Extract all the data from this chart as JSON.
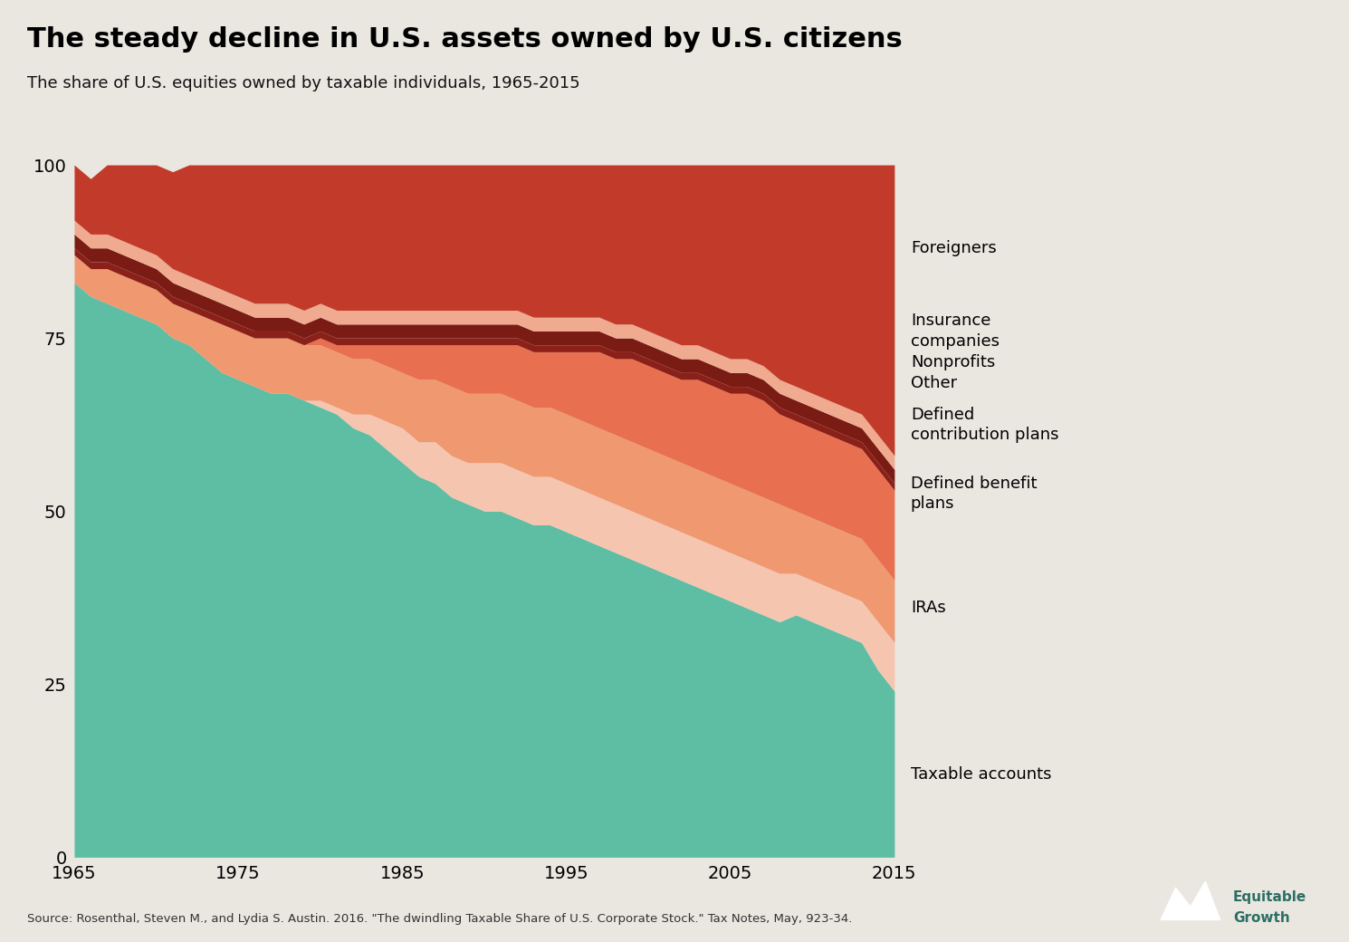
{
  "title": "The steady decline in U.S. assets owned by U.S. citizens",
  "subtitle": "The share of U.S. equities owned by taxable individuals, 1965-2015",
  "source": "Source: Rosenthal, Steven M., and Lydia S. Austin. 2016. \"The dwindling Taxable Share of U.S. Corporate Stock.\" Tax Notes, May, 923-34.",
  "years": [
    1965,
    1966,
    1967,
    1968,
    1969,
    1970,
    1971,
    1972,
    1973,
    1974,
    1975,
    1976,
    1977,
    1978,
    1979,
    1980,
    1981,
    1982,
    1983,
    1984,
    1985,
    1986,
    1987,
    1988,
    1989,
    1990,
    1991,
    1992,
    1993,
    1994,
    1995,
    1996,
    1997,
    1998,
    1999,
    2000,
    2001,
    2002,
    2003,
    2004,
    2005,
    2006,
    2007,
    2008,
    2009,
    2010,
    2011,
    2012,
    2013,
    2014,
    2015
  ],
  "series": {
    "Taxable accounts": [
      83,
      81,
      80,
      79,
      78,
      77,
      75,
      74,
      72,
      70,
      69,
      68,
      67,
      67,
      66,
      65,
      64,
      62,
      61,
      59,
      57,
      55,
      54,
      52,
      51,
      50,
      50,
      49,
      48,
      48,
      47,
      46,
      45,
      44,
      43,
      42,
      41,
      40,
      39,
      38,
      37,
      36,
      35,
      34,
      35,
      34,
      33,
      32,
      31,
      27,
      24
    ],
    "IRAs": [
      0,
      0,
      0,
      0,
      0,
      0,
      0,
      0,
      0,
      0,
      0,
      0,
      0,
      0,
      0,
      1,
      1,
      2,
      3,
      4,
      5,
      5,
      6,
      6,
      6,
      7,
      7,
      7,
      7,
      7,
      7,
      7,
      7,
      7,
      7,
      7,
      7,
      7,
      7,
      7,
      7,
      7,
      7,
      7,
      6,
      6,
      6,
      6,
      6,
      7,
      7
    ],
    "Defined benefit plans": [
      4,
      4,
      5,
      5,
      5,
      5,
      5,
      5,
      6,
      7,
      7,
      7,
      8,
      8,
      8,
      8,
      8,
      8,
      8,
      8,
      8,
      9,
      9,
      10,
      10,
      10,
      10,
      10,
      10,
      10,
      10,
      10,
      10,
      10,
      10,
      10,
      10,
      10,
      10,
      10,
      10,
      10,
      10,
      10,
      9,
      9,
      9,
      9,
      9,
      9,
      9
    ],
    "Defined contribution plans": [
      0,
      0,
      0,
      0,
      0,
      0,
      0,
      0,
      0,
      0,
      0,
      0,
      0,
      0,
      0,
      1,
      1,
      2,
      2,
      3,
      4,
      5,
      5,
      6,
      7,
      7,
      7,
      8,
      8,
      8,
      9,
      10,
      11,
      11,
      12,
      12,
      12,
      12,
      13,
      13,
      13,
      14,
      14,
      13,
      13,
      13,
      13,
      13,
      13,
      13,
      13
    ],
    "Other": [
      1,
      1,
      1,
      1,
      1,
      1,
      1,
      1,
      1,
      1,
      1,
      1,
      1,
      1,
      1,
      1,
      1,
      1,
      1,
      1,
      1,
      1,
      1,
      1,
      1,
      1,
      1,
      1,
      1,
      1,
      1,
      1,
      1,
      1,
      1,
      1,
      1,
      1,
      1,
      1,
      1,
      1,
      1,
      1,
      1,
      1,
      1,
      1,
      1,
      1,
      1
    ],
    "Nonprofits": [
      2,
      2,
      2,
      2,
      2,
      2,
      2,
      2,
      2,
      2,
      2,
      2,
      2,
      2,
      2,
      2,
      2,
      2,
      2,
      2,
      2,
      2,
      2,
      2,
      2,
      2,
      2,
      2,
      2,
      2,
      2,
      2,
      2,
      2,
      2,
      2,
      2,
      2,
      2,
      2,
      2,
      2,
      2,
      2,
      2,
      2,
      2,
      2,
      2,
      2,
      2
    ],
    "Insurance companies": [
      2,
      2,
      2,
      2,
      2,
      2,
      2,
      2,
      2,
      2,
      2,
      2,
      2,
      2,
      2,
      2,
      2,
      2,
      2,
      2,
      2,
      2,
      2,
      2,
      2,
      2,
      2,
      2,
      2,
      2,
      2,
      2,
      2,
      2,
      2,
      2,
      2,
      2,
      2,
      2,
      2,
      2,
      2,
      2,
      2,
      2,
      2,
      2,
      2,
      2,
      2
    ],
    "Foreigners": [
      8,
      8,
      10,
      11,
      12,
      13,
      14,
      16,
      17,
      18,
      19,
      20,
      20,
      20,
      21,
      20,
      21,
      21,
      21,
      21,
      21,
      21,
      21,
      21,
      21,
      21,
      21,
      21,
      22,
      22,
      22,
      22,
      22,
      23,
      23,
      24,
      25,
      26,
      26,
      27,
      28,
      28,
      29,
      31,
      32,
      33,
      34,
      35,
      36,
      39,
      42
    ]
  },
  "colors": {
    "Taxable accounts": "#5dbea3",
    "IRAs": "#f5c5b0",
    "Defined benefit plans": "#f09870",
    "Defined contribution plans": "#e87050",
    "Other": "#8b2018",
    "Nonprofits": "#7a1c14",
    "Insurance companies": "#f0aa90",
    "Foreigners": "#c23b2a"
  },
  "stack_order": [
    "Taxable accounts",
    "IRAs",
    "Defined benefit plans",
    "Defined contribution plans",
    "Other",
    "Nonprofits",
    "Insurance companies",
    "Foreigners"
  ],
  "legend_labels": {
    "Foreigners": "Foreigners",
    "Insurance companies": "Insurance\ncompanies",
    "Nonprofits": "Nonprofits",
    "Other": "Other",
    "Defined contribution plans": "Defined\ncontribution plans",
    "Defined benefit plans": "Defined benefit\nplans",
    "IRAs": "IRAs",
    "Taxable accounts": "Taxable accounts"
  },
  "background_color": "#eae7e1",
  "title_fontsize": 22,
  "subtitle_fontsize": 13,
  "tick_fontsize": 14,
  "label_fontsize": 13
}
